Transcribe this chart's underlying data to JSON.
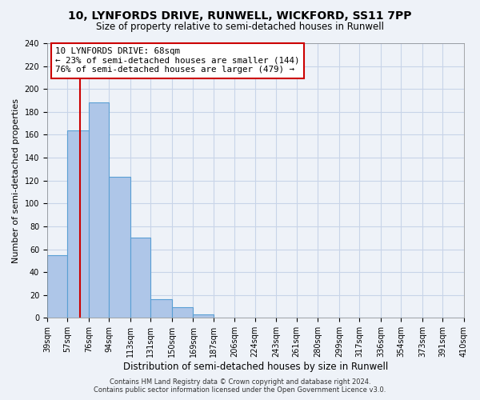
{
  "title": "10, LYNFORDS DRIVE, RUNWELL, WICKFORD, SS11 7PP",
  "subtitle": "Size of property relative to semi-detached houses in Runwell",
  "xlabel": "Distribution of semi-detached houses by size in Runwell",
  "ylabel": "Number of semi-detached properties",
  "bin_edges": [
    39,
    57,
    76,
    94,
    113,
    131,
    150,
    169,
    187,
    206,
    224,
    243,
    261,
    280,
    299,
    317,
    336,
    354,
    373,
    391,
    410
  ],
  "bin_labels": [
    "39sqm",
    "57sqm",
    "76sqm",
    "94sqm",
    "113sqm",
    "131sqm",
    "150sqm",
    "169sqm",
    "187sqm",
    "206sqm",
    "224sqm",
    "243sqm",
    "261sqm",
    "280sqm",
    "299sqm",
    "317sqm",
    "336sqm",
    "354sqm",
    "373sqm",
    "391sqm",
    "410sqm"
  ],
  "counts": [
    55,
    164,
    188,
    123,
    70,
    16,
    9,
    3,
    0,
    0,
    0,
    0,
    0,
    0,
    0,
    0,
    0,
    0,
    0,
    0
  ],
  "bar_color": "#aec6e8",
  "bar_edge_color": "#5a9fd4",
  "vline_x": 68,
  "vline_color": "#cc0000",
  "ylim": [
    0,
    240
  ],
  "yticks": [
    0,
    20,
    40,
    60,
    80,
    100,
    120,
    140,
    160,
    180,
    200,
    220,
    240
  ],
  "annotation_title": "10 LYNFORDS DRIVE: 68sqm",
  "annotation_line1": "← 23% of semi-detached houses are smaller (144)",
  "annotation_line2": "76% of semi-detached houses are larger (479) →",
  "annotation_box_color": "#ffffff",
  "annotation_box_edge": "#cc0000",
  "footer_line1": "Contains HM Land Registry data © Crown copyright and database right 2024.",
  "footer_line2": "Contains public sector information licensed under the Open Government Licence v3.0.",
  "background_color": "#eef2f8",
  "plot_background": "#eef2f8",
  "grid_color": "#c8d4e8"
}
